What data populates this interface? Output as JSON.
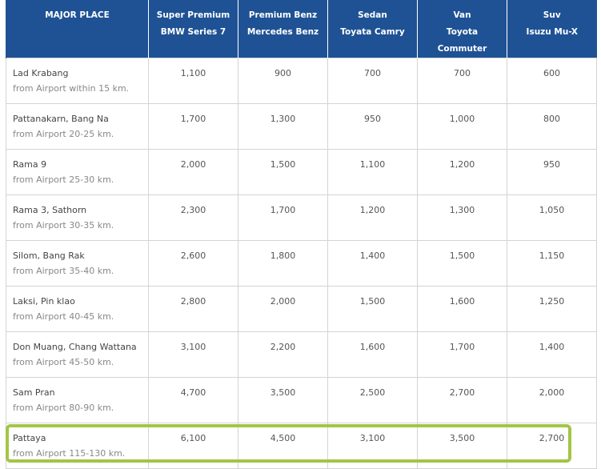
{
  "columns": [
    {
      "line1": "MAJOR PLACE",
      "line2": ""
    },
    {
      "line1": "Super Premium",
      "line2": "BMW Series 7"
    },
    {
      "line1": "Premium Benz",
      "line2": "Mercedes Benz"
    },
    {
      "line1": "Sedan",
      "line2": "Toyata Camry"
    },
    {
      "line1": "Van",
      "line2": "Toyota Commuter"
    },
    {
      "line1": "Suv",
      "line2": "Isuzu Mu-X"
    }
  ],
  "rows": [
    {
      "place": "Lad Krabang",
      "distance": "from Airport within 15 km.",
      "prices": [
        "1,100",
        "900",
        "700",
        "700",
        "600"
      ]
    },
    {
      "place": "Pattanakarn, Bang Na",
      "distance": "from Airport 20-25 km.",
      "prices": [
        "1,700",
        "1,300",
        "950",
        "1,000",
        "800"
      ]
    },
    {
      "place": "Rama 9",
      "distance": "from Airport 25-30 km.",
      "prices": [
        "2,000",
        "1,500",
        "1,100",
        "1,200",
        "950"
      ]
    },
    {
      "place": "Rama 3, Sathorn",
      "distance": "from Airport 30-35 km.",
      "prices": [
        "2,300",
        "1,700",
        "1,200",
        "1,300",
        "1,050"
      ]
    },
    {
      "place": "Silom, Bang Rak",
      "distance": "from Airport 35-40 km.",
      "prices": [
        "2,600",
        "1,800",
        "1,400",
        "1,500",
        "1,150"
      ]
    },
    {
      "place": "Laksi, Pin klao",
      "distance": "from Airport 40-45 km.",
      "prices": [
        "2,800",
        "2,000",
        "1,500",
        "1,600",
        "1,250"
      ]
    },
    {
      "place": "Don Muang, Chang Wattana",
      "distance": "from Airport 45-50 km.",
      "prices": [
        "3,100",
        "2,200",
        "1,600",
        "1,700",
        "1,400"
      ]
    },
    {
      "place": "Sam Pran",
      "distance": "from Airport 80-90 km.",
      "prices": [
        "4,700",
        "3,500",
        "2,500",
        "2,700",
        "2,000"
      ]
    },
    {
      "place": "Pattaya",
      "distance": "from Airport 115-130 km.",
      "prices": [
        "6,100",
        "4,500",
        "3,100",
        "3,500",
        "2,700"
      ]
    }
  ],
  "highlighted_row": "Pattaya",
  "colors": {
    "header_bg": "#1f5294",
    "header_text": "#ffffff",
    "highlight_border": "#a4c547",
    "cell_border": "#d4d4d4"
  }
}
